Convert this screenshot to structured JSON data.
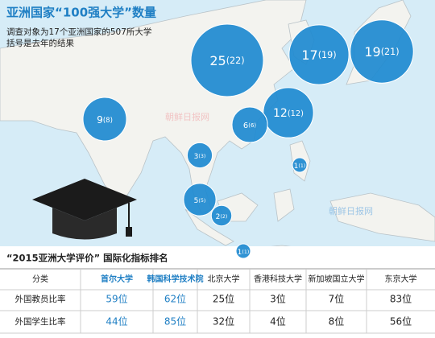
{
  "header": {
    "title": "亚洲国家“100强大学”数量",
    "subtitle_lines": [
      "调查对象为17个亚洲国家的507所大学",
      "括号是去年的结果"
    ]
  },
  "bubbles": [
    {
      "value": 9,
      "previous": {
        "value": 8,
        "label": "(8)"
      }
    },
    {
      "value": 25,
      "previous": {
        "value": 22,
        "label": "(22)"
      }
    },
    {
      "value": 17,
      "previous": {
        "value": 19,
        "label": "(19)"
      }
    },
    {
      "value": 19,
      "previous": {
        "value": 21,
        "label": "(21)"
      }
    },
    {
      "value": 12,
      "previous": {
        "value": 12,
        "label": "(12)"
      }
    },
    {
      "value": 6,
      "previous": {
        "value": 6,
        "label": "(6)"
      }
    },
    {
      "value": 3,
      "previous": {
        "value": 3,
        "label": "(3)"
      }
    },
    {
      "value": 1,
      "previous": {
        "value": 1,
        "label": "(1)"
      }
    },
    {
      "value": 5,
      "previous": {
        "value": 5,
        "label": "(5)"
      }
    },
    {
      "value": 2,
      "previous": {
        "value": 2,
        "label": "(2)"
      }
    },
    {
      "value": 1,
      "previous": {
        "value": 1,
        "label": "(1)"
      }
    }
  ],
  "watermarks": [
    "朝鲜日报网",
    "朝鲜日报网"
  ],
  "table": {
    "title": "“2015亚洲大学评价” 国际化指标排名",
    "header": [
      "分类",
      "首尔大学",
      "韩国科学技术院",
      "北京大学",
      "香港科技大学",
      "新加坡国立大学",
      "东京大学"
    ],
    "rows": [
      [
        "外国教员比率",
        "59位",
        "62位",
        "25位",
        "3位",
        "7位",
        "83位"
      ],
      [
        "外国学生比率",
        "44位",
        "85位",
        "32位",
        "4位",
        "8位",
        "56位"
      ]
    ]
  }
}
